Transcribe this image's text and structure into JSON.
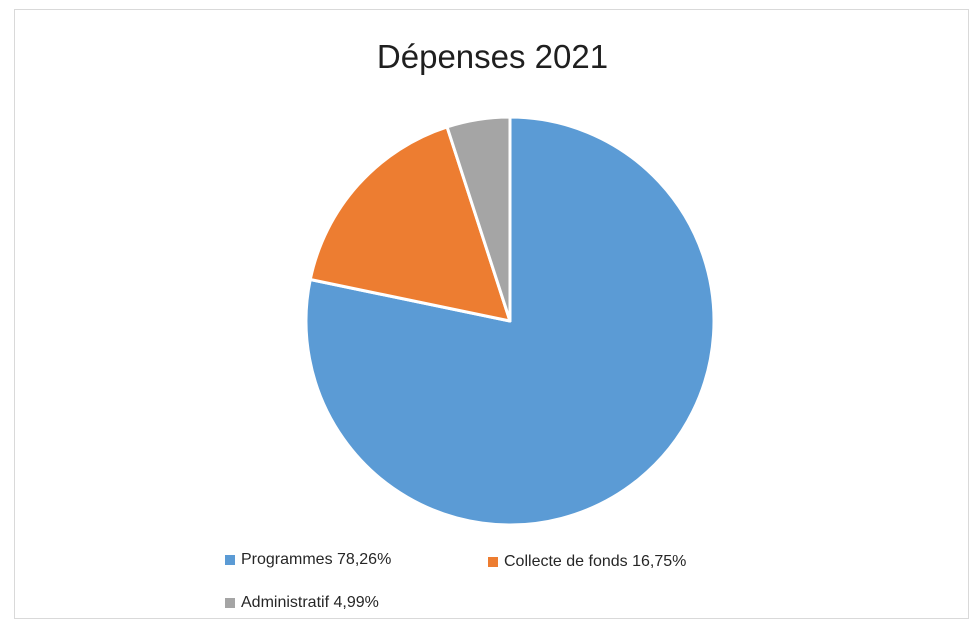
{
  "chart_data": {
    "type": "pie",
    "title": "Dépenses 2021",
    "categories": [
      "Programmes",
      "Collecte de fonds",
      "Administratif"
    ],
    "values": [
      78.26,
      16.75,
      4.99
    ],
    "legend_position": "bottom",
    "colors": [
      "#5b9bd5",
      "#ed7d31",
      "#a5a5a5"
    ],
    "legend": [
      {
        "label": "Programmes 78,26%",
        "color": "#5b9bd5"
      },
      {
        "label": "Collecte de fonds 16,75%",
        "color": "#ed7d31"
      },
      {
        "label": "Administratif 4,99%",
        "color": "#a5a5a5"
      }
    ]
  }
}
